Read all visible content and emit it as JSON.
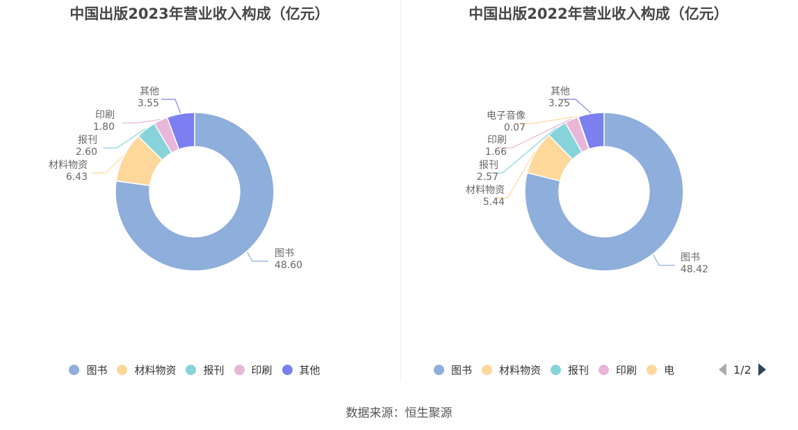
{
  "source": "数据来源：恒生聚源",
  "legend_pager": {
    "text": "1/2"
  },
  "chart_data": [
    {
      "type": "pie",
      "title": "中国出版2023年营业收入构成（亿元）",
      "categories": [
        "图书",
        "材料物资",
        "报刊",
        "印刷",
        "其他"
      ],
      "values": [
        48.6,
        6.43,
        2.6,
        1.8,
        3.55
      ],
      "value_labels": [
        "48.60",
        "6.43",
        "2.60",
        "1.80",
        "3.55"
      ],
      "colors": [
        "#8eaedb",
        "#fdd89a",
        "#86d4da",
        "#e8b6d8",
        "#7b7ff0"
      ],
      "legend": [
        "图书",
        "材料物资",
        "报刊",
        "印刷",
        "其他"
      ]
    },
    {
      "type": "pie",
      "title": "中国出版2022年营业收入构成（亿元）",
      "categories": [
        "图书",
        "材料物资",
        "报刊",
        "印刷",
        "电子音像",
        "其他"
      ],
      "values": [
        48.42,
        5.44,
        2.57,
        1.66,
        0.07,
        3.25
      ],
      "value_labels": [
        "48.42",
        "5.44",
        "2.57",
        "1.66",
        "0.07",
        "3.25"
      ],
      "colors": [
        "#8eaedb",
        "#fdd89a",
        "#86d4da",
        "#e8b6d8",
        "#fdd89a",
        "#7b7ff0"
      ],
      "legend": [
        "图书",
        "材料物资",
        "报刊",
        "印刷",
        "电"
      ]
    }
  ]
}
